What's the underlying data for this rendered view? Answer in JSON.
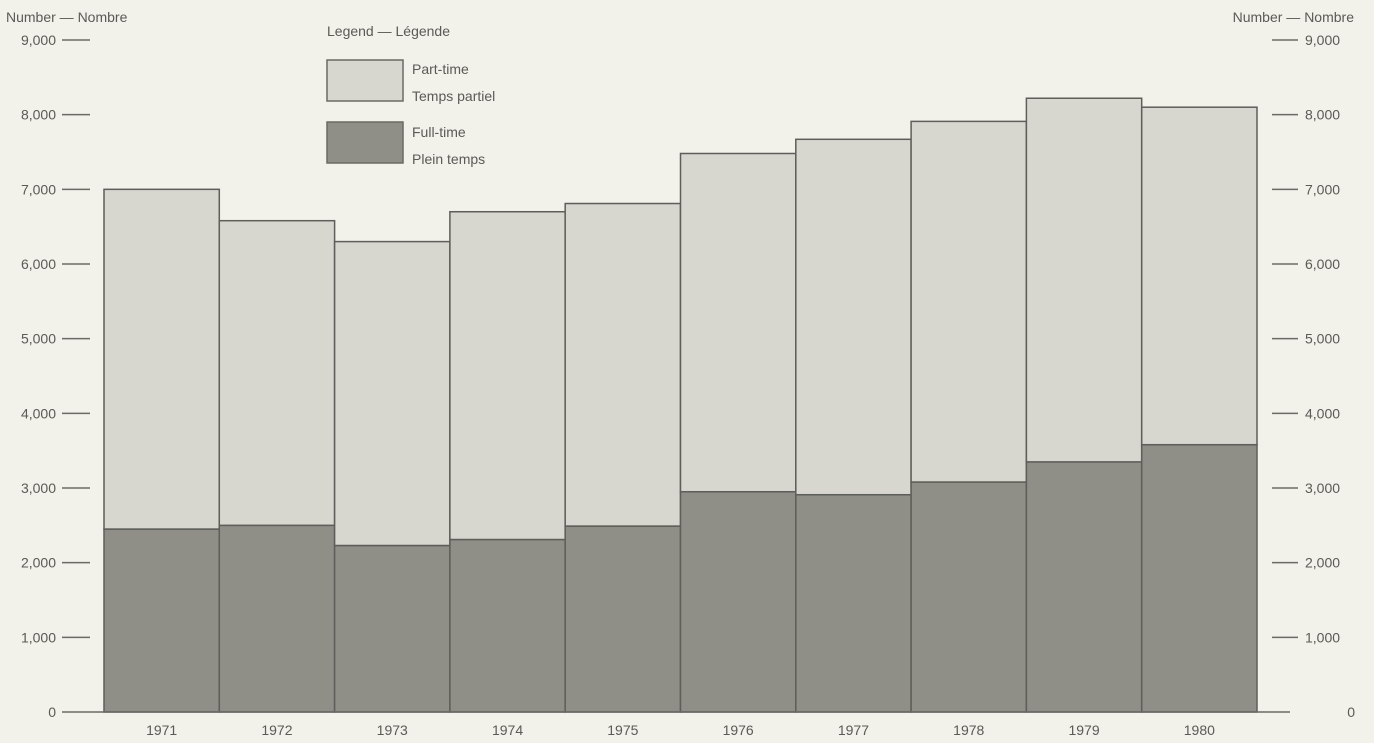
{
  "chart_data": {
    "type": "bar",
    "stacked": true,
    "categories": [
      "1971",
      "1972",
      "1973",
      "1974",
      "1975",
      "1976",
      "1977",
      "1978",
      "1979",
      "1980"
    ],
    "series": [
      {
        "name": "Full-time — Plein temps",
        "values": [
          2450,
          2500,
          2230,
          2310,
          2490,
          2950,
          2910,
          3080,
          3350,
          3580
        ],
        "color": "#8f8f88"
      },
      {
        "name": "Part-time — Temps partiel",
        "values": [
          4550,
          4080,
          4070,
          4390,
          4320,
          4530,
          4760,
          4830,
          4870,
          4520
        ],
        "color": "#d7d7cf"
      }
    ],
    "left_axis_title": "Number — Nombre",
    "right_axis_title": "Number — Nombre",
    "ylim": [
      0,
      9000
    ],
    "y_ticks": [
      0,
      1000,
      2000,
      3000,
      4000,
      5000,
      6000,
      7000,
      8000,
      9000
    ],
    "y_tick_labels": [
      "0",
      "1,000",
      "2,000",
      "3,000",
      "4,000",
      "5,000",
      "6,000",
      "7,000",
      "8,000",
      "9,000"
    ],
    "grid": false,
    "legend": {
      "title": "Legend — Légende",
      "placement": "top-left",
      "entries": [
        {
          "line1": "Part-time",
          "line2": "Temps partiel",
          "color": "#d7d7cf"
        },
        {
          "line1": "Full-time",
          "line2": "Plein temps",
          "color": "#8f8f88"
        }
      ]
    }
  }
}
